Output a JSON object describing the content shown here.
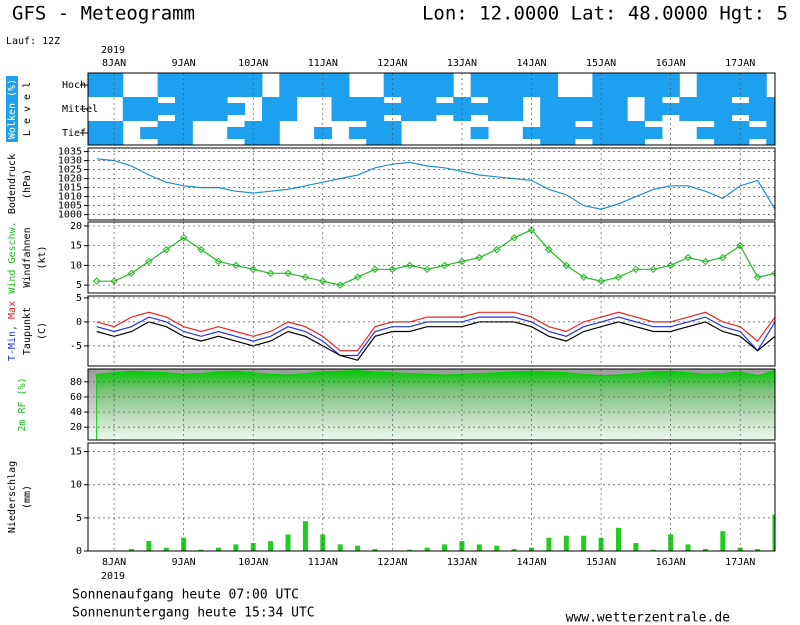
{
  "header": {
    "title": "GFS - Meteogramm",
    "location": "Lon: 12.0000 Lat: 48.0000 Hgt: 5",
    "run": "Lauf: 12Z"
  },
  "time_axis": {
    "year": "2019",
    "xlim": [
      -9,
      228
    ],
    "xticks": [
      {
        "value": 0,
        "label": "8JAN"
      },
      {
        "value": 24,
        "label": "9JAN"
      },
      {
        "value": 48,
        "label": "10JAN"
      },
      {
        "value": 72,
        "label": "11JAN"
      },
      {
        "value": 96,
        "label": "12JAN"
      },
      {
        "value": 120,
        "label": "13JAN"
      },
      {
        "value": 144,
        "label": "14JAN"
      },
      {
        "value": 168,
        "label": "15JAN"
      },
      {
        "value": 192,
        "label": "16JAN"
      },
      {
        "value": 216,
        "label": "17JAN"
      }
    ],
    "x": [
      -6,
      0,
      6,
      12,
      18,
      24,
      30,
      36,
      42,
      48,
      54,
      60,
      66,
      72,
      78,
      84,
      90,
      96,
      102,
      108,
      114,
      120,
      126,
      132,
      138,
      144,
      150,
      156,
      162,
      168,
      174,
      180,
      186,
      192,
      198,
      204,
      210,
      216,
      222,
      228
    ]
  },
  "chart_data": [
    {
      "type": "cloud",
      "color": "#1ea0f0",
      "ylabels": [
        [
          {
            "text": "Wolken (%)",
            "color": "#ffffff"
          }
        ],
        [
          {
            "text": "L e v e l",
            "color": "#000000"
          }
        ]
      ],
      "series": [
        {
          "name": "Hoch",
          "values": [
            100,
            100,
            0,
            0,
            100,
            100,
            100,
            100,
            100,
            100,
            0,
            100,
            100,
            100,
            100,
            0,
            0,
            100,
            100,
            100,
            100,
            0,
            100,
            100,
            100,
            100,
            100,
            0,
            0,
            100,
            100,
            100,
            100,
            100,
            0,
            100,
            100,
            100,
            100,
            0
          ]
        },
        {
          "name": "Mittel",
          "values": [
            0,
            0,
            100,
            100,
            50,
            100,
            100,
            100,
            50,
            0,
            100,
            100,
            0,
            0,
            100,
            100,
            100,
            50,
            100,
            100,
            50,
            100,
            50,
            100,
            100,
            0,
            100,
            100,
            100,
            100,
            100,
            0,
            100,
            50,
            100,
            100,
            100,
            50,
            100,
            100
          ]
        },
        {
          "name": "Tief",
          "values": [
            100,
            100,
            0,
            50,
            100,
            100,
            0,
            0,
            50,
            100,
            100,
            0,
            0,
            50,
            0,
            50,
            100,
            100,
            0,
            0,
            0,
            0,
            50,
            0,
            0,
            50,
            100,
            100,
            50,
            100,
            100,
            100,
            50,
            0,
            0,
            50,
            100,
            100,
            50,
            100
          ]
        }
      ]
    },
    {
      "type": "line",
      "ylabels": [
        [
          {
            "text": "Bodendruck",
            "color": "#000000"
          }
        ],
        [
          {
            "text": "(hPa)",
            "color": "#000000"
          }
        ]
      ],
      "ylim": [
        997,
        1037
      ],
      "yticks": [
        1000,
        1005,
        1010,
        1015,
        1020,
        1025,
        1030,
        1035
      ],
      "series": [
        {
          "color": "#1e90d0",
          "values": [
            1031,
            1030,
            1027,
            1022,
            1018,
            1016,
            1015,
            1015,
            1013,
            1012,
            1013,
            1014,
            1016,
            1018,
            1020,
            1022,
            1026,
            1028,
            1029,
            1027,
            1026,
            1024,
            1022,
            1021,
            1020,
            1019,
            1014,
            1011,
            1005,
            1003,
            1006,
            1010,
            1014,
            1016,
            1016,
            1013,
            1009,
            1016,
            1019,
            1003
          ]
        }
      ]
    },
    {
      "type": "line",
      "marker": "diamond",
      "ylabels": [
        [
          {
            "text": "Wind Geschw.",
            "color": "#22bb22"
          }
        ],
        [
          {
            "text": "Windfahnen",
            "color": "#000000"
          }
        ],
        [
          {
            "text": "(kt)",
            "color": "#000000"
          }
        ]
      ],
      "ylim": [
        3,
        21
      ],
      "yticks": [
        5,
        10,
        15,
        20
      ],
      "series": [
        {
          "color": "#22bb22",
          "values": [
            6,
            6,
            8,
            11,
            14,
            17,
            14,
            11,
            10,
            9,
            8,
            8,
            7,
            6,
            5,
            7,
            9,
            9,
            10,
            9,
            10,
            11,
            12,
            14,
            17,
            19,
            14,
            10,
            7,
            6,
            7,
            9,
            9,
            10,
            12,
            11,
            12,
            15,
            7,
            8
          ]
        }
      ]
    },
    {
      "type": "line",
      "ylabels": [
        [
          {
            "text": "T-Min,",
            "color": "#2233dd"
          },
          {
            "text": " Max",
            "color": "#ee2222"
          }
        ],
        [
          {
            "text": "Taupunkt",
            "color": "#000000"
          }
        ],
        [
          {
            "text": "(C)",
            "color": "#000000"
          }
        ]
      ],
      "ylim": [
        -9.2,
        5.4
      ],
      "yticks": [
        -5,
        0,
        5
      ],
      "series": [
        {
          "color": "#ee2222",
          "values": [
            0,
            -1,
            1,
            2,
            1,
            -1,
            -2,
            -1,
            -2,
            -3,
            -2,
            0,
            -1,
            -3,
            -6,
            -6,
            -1,
            0,
            0,
            1,
            1,
            1,
            2,
            2,
            2,
            1,
            -1,
            -2,
            0,
            1,
            2,
            1,
            0,
            0,
            1,
            2,
            0,
            -1,
            -4,
            1
          ]
        },
        {
          "color": "#2233dd",
          "values": [
            -1,
            -2,
            -1,
            1,
            0,
            -2,
            -3,
            -2,
            -3,
            -4,
            -3,
            -1,
            -2,
            -4,
            -7,
            -7,
            -2,
            -1,
            -1,
            0,
            0,
            0,
            1,
            1,
            1,
            0,
            -2,
            -3,
            -1,
            0,
            1,
            0,
            -1,
            -1,
            0,
            1,
            -1,
            -2,
            -6,
            0
          ]
        },
        {
          "color": "#000000",
          "values": [
            -2,
            -3,
            -2,
            0,
            -1,
            -3,
            -4,
            -3,
            -4,
            -5,
            -4,
            -2,
            -3,
            -5,
            -7,
            -8,
            -3,
            -2,
            -2,
            -1,
            -1,
            -1,
            0,
            0,
            0,
            -1,
            -3,
            -4,
            -2,
            -1,
            0,
            -1,
            -2,
            -2,
            -1,
            0,
            -2,
            -3,
            -6,
            -3
          ]
        }
      ]
    },
    {
      "type": "area",
      "ylabels": [
        [
          {
            "text": "2m RF (%)",
            "color": "#22bb22"
          }
        ]
      ],
      "ylim": [
        3,
        97
      ],
      "yticks": [
        20,
        40,
        60,
        80
      ],
      "series": [
        {
          "color": "#00cc00",
          "values": [
            90,
            92,
            94,
            93,
            92,
            90,
            91,
            93,
            94,
            92,
            90,
            89,
            91,
            93,
            94,
            95,
            93,
            92,
            91,
            90,
            89,
            90,
            91,
            92,
            93,
            94,
            93,
            92,
            90,
            88,
            89,
            91,
            93,
            94,
            92,
            90,
            91,
            93,
            88,
            95
          ]
        }
      ]
    },
    {
      "type": "bar",
      "ylabels": [
        [
          {
            "text": "Niederschlag",
            "color": "#000000"
          }
        ],
        [
          {
            "text": "(mm)",
            "color": "#000000"
          }
        ]
      ],
      "ylim": [
        0,
        16.3
      ],
      "yticks": [
        0,
        5,
        10,
        15
      ],
      "series": [
        {
          "color": "#22cc22",
          "values": [
            0,
            0,
            0.3,
            1.5,
            0.5,
            2,
            0.2,
            0.5,
            1,
            1.2,
            1.5,
            2.5,
            4.5,
            2.5,
            1,
            0.8,
            0.3,
            0,
            0.2,
            0.5,
            1,
            1.5,
            1,
            0.8,
            0.3,
            0.5,
            2,
            2.3,
            2.3,
            2,
            3.5,
            1.2,
            0.2,
            2.5,
            1,
            0.3,
            3,
            0.5,
            0.3,
            5.5
          ]
        }
      ]
    }
  ],
  "footer": {
    "sunrise": "Sonnenaufgang heute 07:00 UTC",
    "sunset": "Sonnenuntergang heute 15:34 UTC",
    "source": "www.wetterzentrale.de"
  }
}
